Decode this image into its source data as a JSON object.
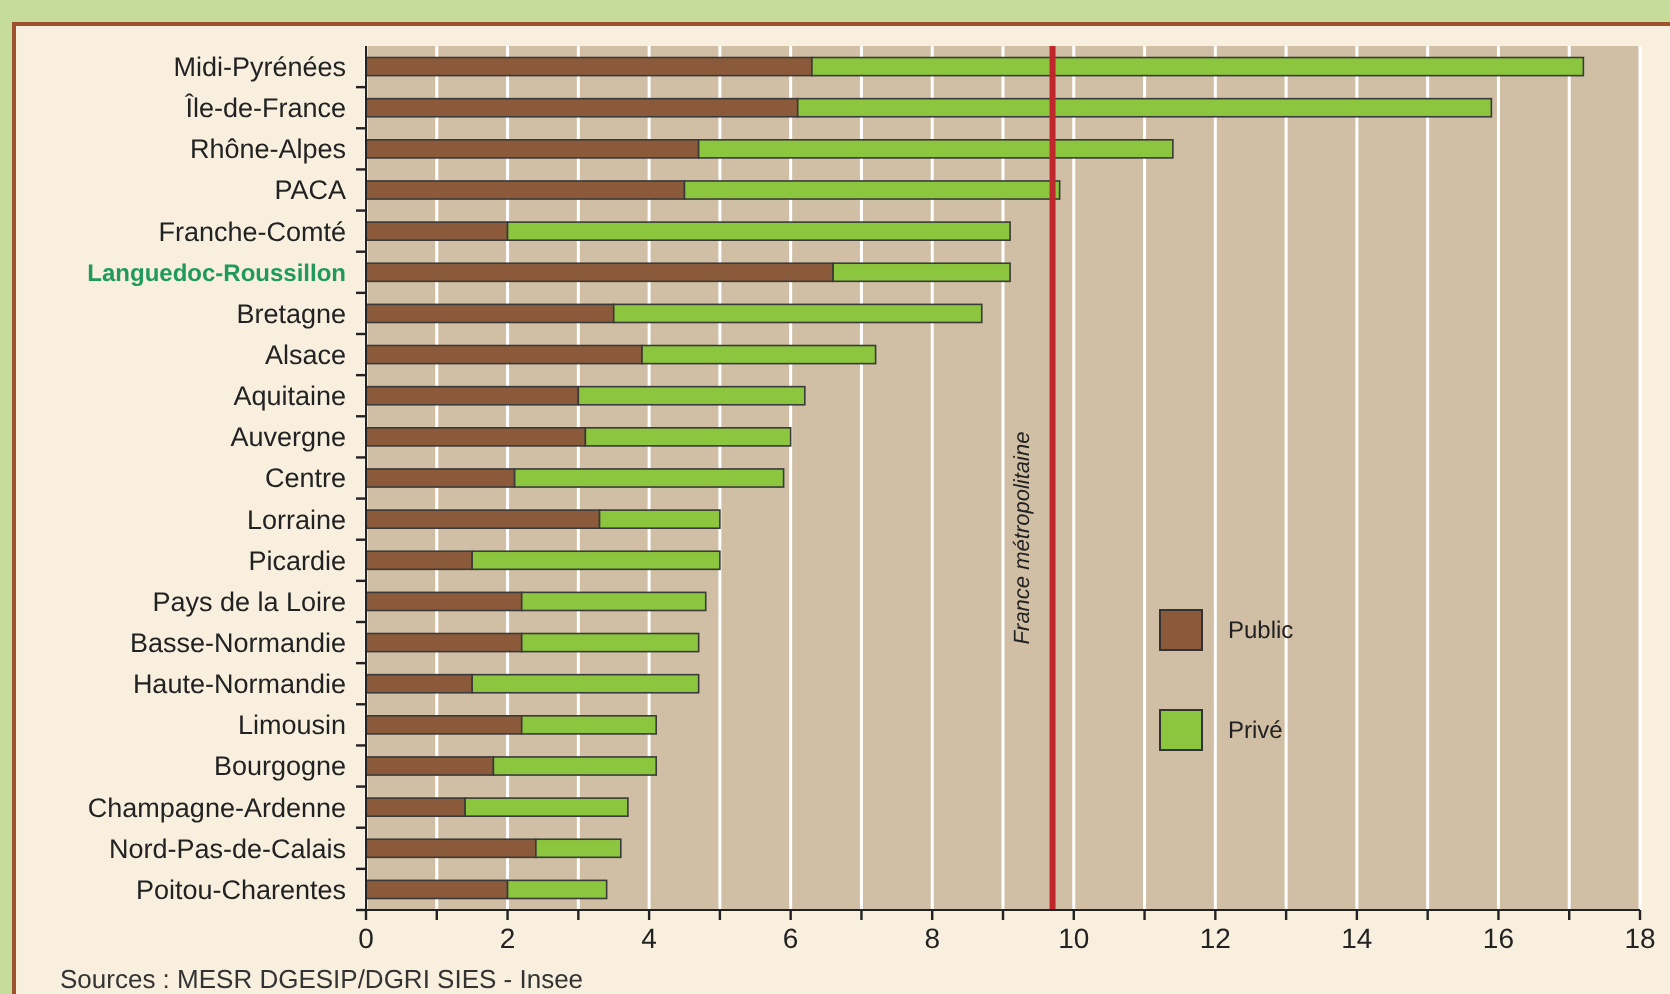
{
  "chart_data": {
    "type": "bar",
    "orientation": "horizontal",
    "stacked": true,
    "categories": [
      "Midi-Pyrénées",
      "Île-de-France",
      "Rhône-Alpes",
      "PACA",
      "Franche-Comté",
      "Languedoc-Roussillon",
      "Bretagne",
      "Alsace",
      "Aquitaine",
      "Auvergne",
      "Centre",
      "Lorraine",
      "Picardie",
      "Pays de la Loire",
      "Basse-Normandie",
      "Haute-Normandie",
      "Limousin",
      "Bourgogne",
      "Champagne-Ardenne",
      "Nord-Pas-de-Calais",
      "Poitou-Charentes"
    ],
    "series": [
      {
        "name": "Public",
        "color": "#8b5a3a",
        "values": [
          6.3,
          6.1,
          4.7,
          4.5,
          2.0,
          6.6,
          3.5,
          3.9,
          3.0,
          3.1,
          2.1,
          3.3,
          1.5,
          2.2,
          2.2,
          1.5,
          2.2,
          1.8,
          1.4,
          2.4,
          2.0
        ]
      },
      {
        "name": "Privé",
        "color": "#8cc63f",
        "values": [
          10.9,
          9.8,
          6.7,
          5.3,
          7.1,
          2.5,
          5.2,
          3.3,
          3.2,
          2.9,
          3.8,
          1.7,
          3.5,
          2.6,
          2.5,
          3.2,
          1.9,
          2.3,
          2.3,
          1.2,
          1.4
        ]
      }
    ],
    "xlim": [
      0,
      18
    ],
    "xticks": [
      0,
      {
        "value": 1,
        "label": null
      },
      2,
      {
        "value": 3,
        "label": null
      },
      4,
      {
        "value": 5,
        "label": null
      },
      6,
      {
        "value": 7,
        "label": null
      },
      8,
      {
        "value": 9,
        "label": null
      },
      10,
      {
        "value": 11,
        "label": null
      },
      12,
      {
        "value": 13,
        "label": null
      },
      14,
      {
        "value": 15,
        "label": null
      },
      16,
      {
        "value": 17,
        "label": null
      },
      18
    ],
    "grid": "x",
    "legend": "right",
    "ref_lines": [
      {
        "axis": "x",
        "value": 9.7,
        "label": "France métropolitaine",
        "color": "#c0272d"
      }
    ],
    "annotations": [
      "Sources : MESR DGESIP/DGRI SIES - Insee"
    ]
  }
}
